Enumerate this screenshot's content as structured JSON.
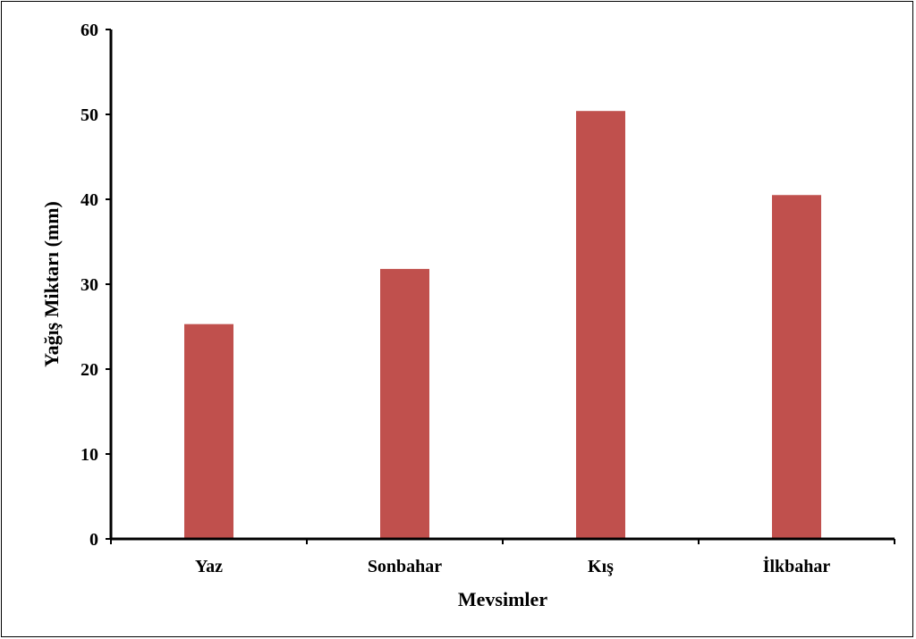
{
  "chart_data": {
    "type": "bar",
    "title": "",
    "xlabel": "Mevsimler",
    "ylabel": "Yağış Miktarı (mm)",
    "categories": [
      "Yaz",
      "Sonbahar",
      "Kış",
      "İlkbahar"
    ],
    "values": [
      25.3,
      31.8,
      50.4,
      40.5
    ],
    "ylim": [
      0,
      60
    ],
    "yticks": [
      0,
      10,
      20,
      30,
      40,
      50,
      60
    ],
    "grid": false,
    "legend": "none",
    "colors": {
      "bar": "#c0504d",
      "axis": "#000000"
    }
  }
}
